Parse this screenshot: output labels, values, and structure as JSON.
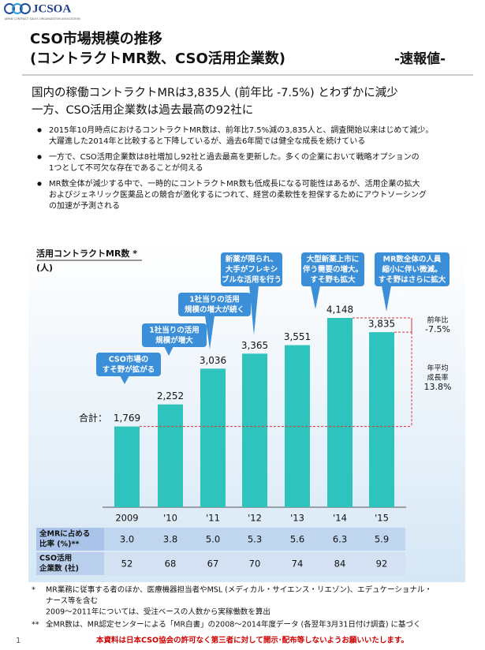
{
  "header": {
    "logo": "JCSOA",
    "logo_subtitle": "JAPAN CONTRACT SALES ORGANIZATION ASSOCIATION",
    "title": [
      "CSO市場規模の推移",
      "(コントラクトMR数、CSO活用企業数)"
    ],
    "tag": "-速報値-"
  },
  "headline": [
    "国内の稼働コントラクトMRは3,835人 (前年比 -7.5%) とわずかに減少",
    "一方、CSO活用企業数は過去最高の92社に"
  ],
  "bullets": [
    [
      "2015年10月時点におけるコントラクトMR数は、前年比7.5%減の3,835人と、調査開始以来はじめて減少。",
      "大躍進した2014年と比較すると下降しているが、過去6年間では健全な成長を続けている"
    ],
    [
      "一方で、CSO活用企業数は8社増加し92社と過去最高を更新した。多くの企業において戦略オプションの",
      "1つとして不可欠な存在であることが伺える"
    ],
    [
      "MR数全体が減少する中で、一時的にコントラクトMR数も低成長になる可能性はあるが、活用企業の拡大",
      "およびジェネリック医薬品との競合が激化するにつれて、経営の柔軟性を担保するためにアウトソーシング",
      "の加速が予測される"
    ]
  ],
  "chart_data": {
    "type": "bar",
    "title": "活用コントラクトMR数 *",
    "unit": "(人)",
    "categories": [
      "2009",
      "'10",
      "'11",
      "'12",
      "'13",
      "'14",
      "'15"
    ],
    "values": [
      1769,
      2252,
      3036,
      3365,
      3551,
      4148,
      3835
    ],
    "value_labels": [
      "1,769",
      "2,252",
      "3,036",
      "3,365",
      "3,551",
      "4,148",
      "3,835"
    ],
    "color": "#2ec4bd",
    "total_label": "合計：",
    "callouts": [
      [
        "CSO市場の",
        "すそ野が拡がる"
      ],
      [
        "1社当りの活用",
        "規模が増大"
      ],
      [
        "1社当りの活用",
        "規模の増大が続く"
      ],
      [
        "新薬が限られ、",
        "大手がフレキシ",
        "ブルな活用を行う"
      ],
      [
        "大型新薬上市に",
        "伴う需要の増大。",
        "すそ野も拡大"
      ],
      [
        "MR数全体の人員",
        "縮小に伴い微減。",
        "すそ野はさらに拡大"
      ]
    ],
    "annotations": {
      "yoy": [
        "前年比",
        "-7.5%"
      ],
      "cagr": [
        "年平均",
        "成長率",
        "13.8%"
      ]
    }
  },
  "table": {
    "rows": [
      {
        "label": [
          "全MRに占める",
          "比率 (%)**"
        ],
        "cells": [
          "3.0",
          "3.8",
          "5.0",
          "5.3",
          "5.6",
          "6.3",
          "5.9"
        ]
      },
      {
        "label": [
          "CSO活用",
          "企業数 (社)"
        ],
        "cells": [
          "52",
          "68",
          "67",
          "70",
          "74",
          "84",
          "92"
        ]
      }
    ]
  },
  "footnotes": [
    {
      "mark": "*",
      "lines": [
        "MR業務に従事する者のほか、医療機器担当者やMSL (メディカル・サイエンス・リエゾン)、エデュケーショナル・",
        "ナース等を含む",
        "2009～2011年については、受注ベースの人数から実稼働数を算出"
      ]
    },
    {
      "mark": "**",
      "lines": [
        "全MR数は、MR認定センターによる「MR白書」の2008～2014年度データ (各翌年3月31日付け調査) に基づく"
      ]
    }
  ],
  "page_number": "1",
  "footer": "本資料は日本CSO協会の許可なく第三者に対して開示･配布等しないようお願いいたします。"
}
